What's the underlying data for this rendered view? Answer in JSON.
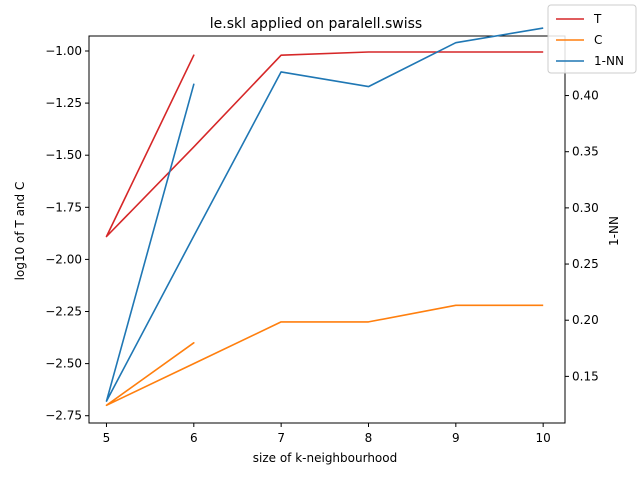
{
  "chart_data": {
    "type": "line",
    "title": "le.skl applied on paralell.swiss",
    "xlabel": "size of k-neighbourhood",
    "ylabel": "log10 of T and C",
    "y2label": "1-NN",
    "xlim": [
      4.8,
      10.25
    ],
    "ylim": [
      -2.785,
      -0.928
    ],
    "y2lim": [
      0.1085,
      0.453
    ],
    "x_ticks": [
      5,
      6,
      7,
      8,
      9,
      10
    ],
    "y_ticks": [
      -2.75,
      -2.5,
      -2.25,
      -2.0,
      -1.75,
      -1.5,
      -1.25,
      -1.0
    ],
    "y_tick_labels": [
      "−2.75",
      "−2.50",
      "−2.25",
      "−2.00",
      "−1.75",
      "−1.50",
      "−1.25",
      "−1.00"
    ],
    "y2_ticks": [
      0.15,
      0.2,
      0.25,
      0.3,
      0.35,
      0.4
    ],
    "y2_tick_labels": [
      "0.15",
      "0.20",
      "0.25",
      "0.30",
      "0.35",
      "0.40"
    ],
    "legend_position": "top-right",
    "series": [
      {
        "name": "T",
        "axis": "left",
        "color": "#d62728",
        "x": [
          5,
          6,
          5,
          6,
          7,
          8,
          9,
          10
        ],
        "values": [
          -1.89,
          -1.02,
          -1.89,
          -1.46,
          -1.02,
          -1.005,
          -1.005,
          -1.005
        ]
      },
      {
        "name": "C",
        "axis": "left",
        "color": "#ff7f0e",
        "x": [
          5,
          6,
          5,
          6,
          7,
          8,
          9,
          10
        ],
        "values": [
          -2.7,
          -2.4,
          -2.7,
          -2.5,
          -2.3,
          -2.3,
          -2.22,
          -2.22
        ]
      },
      {
        "name": "1-NN",
        "axis": "right",
        "color": "#1f77b4",
        "x": [
          5,
          6,
          5,
          6,
          7,
          8,
          9,
          10
        ],
        "values": [
          0.128,
          0.41,
          0.128,
          0.275,
          0.421,
          0.408,
          0.447,
          0.46
        ]
      }
    ]
  }
}
